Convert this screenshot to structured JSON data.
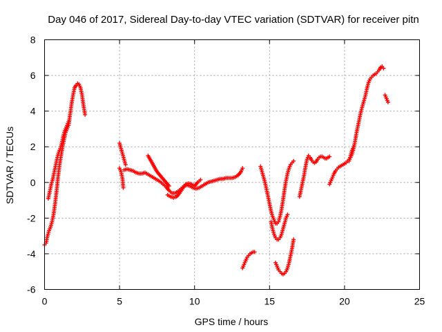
{
  "chart_data": {
    "type": "scatter",
    "title": "Day 046 of 2017, Sidereal Day-to-day VTEC variation (SDTVAR) for receiver pitn",
    "xlabel": "GPS time / hours",
    "ylabel": "SDTVAR / TECUs",
    "xlim": [
      0,
      25
    ],
    "ylim": [
      -6,
      8
    ],
    "xticks": [
      0,
      5,
      10,
      15,
      20,
      25
    ],
    "yticks": [
      -6,
      -4,
      -2,
      0,
      2,
      4,
      6,
      8
    ],
    "grid": true,
    "marker": "plus",
    "color": "#ff0000",
    "segments": [
      [
        [
          0.0,
          -3.5
        ],
        [
          0.1,
          -3.4
        ],
        [
          0.2,
          -3.0
        ],
        [
          0.3,
          -2.7
        ],
        [
          0.4,
          -2.5
        ],
        [
          0.5,
          -2.2
        ],
        [
          0.6,
          -1.8
        ],
        [
          0.7,
          -1.2
        ],
        [
          0.8,
          -0.5
        ],
        [
          0.9,
          0.3
        ],
        [
          1.0,
          1.0
        ],
        [
          1.1,
          1.5
        ],
        [
          1.2,
          2.0
        ],
        [
          1.3,
          2.4
        ],
        [
          1.4,
          2.8
        ],
        [
          1.5,
          3.0
        ],
        [
          1.6,
          3.2
        ],
        [
          1.7,
          3.8
        ],
        [
          1.8,
          4.4
        ],
        [
          1.9,
          4.9
        ],
        [
          2.0,
          5.3
        ],
        [
          2.1,
          5.45
        ],
        [
          2.2,
          5.55
        ],
        [
          2.3,
          5.5
        ],
        [
          2.4,
          5.3
        ],
        [
          2.5,
          4.9
        ],
        [
          2.6,
          4.3
        ],
        [
          2.7,
          3.8
        ]
      ],
      [
        [
          0.25,
          -0.9
        ],
        [
          0.35,
          -0.5
        ],
        [
          0.45,
          -0.1
        ],
        [
          0.55,
          0.2
        ],
        [
          0.65,
          0.6
        ],
        [
          0.75,
          1.0
        ],
        [
          0.85,
          1.4
        ],
        [
          0.95,
          1.7
        ],
        [
          1.05,
          1.9
        ],
        [
          1.15,
          2.2
        ],
        [
          1.25,
          2.6
        ],
        [
          1.35,
          2.9
        ],
        [
          1.45,
          3.1
        ],
        [
          1.55,
          3.3
        ],
        [
          1.65,
          3.5
        ]
      ],
      [
        [
          5.0,
          2.2
        ],
        [
          5.1,
          1.9
        ],
        [
          5.2,
          1.6
        ],
        [
          5.3,
          1.3
        ],
        [
          5.4,
          1.0
        ]
      ],
      [
        [
          5.0,
          0.8
        ],
        [
          5.1,
          0.6
        ],
        [
          5.2,
          0.2
        ],
        [
          5.25,
          -0.3
        ]
      ],
      [
        [
          5.3,
          0.7
        ],
        [
          5.5,
          0.75
        ],
        [
          5.7,
          0.7
        ],
        [
          5.9,
          0.65
        ],
        [
          6.1,
          0.55
        ],
        [
          6.3,
          0.5
        ],
        [
          6.5,
          0.5
        ],
        [
          6.7,
          0.55
        ],
        [
          6.9,
          0.45
        ],
        [
          7.1,
          0.35
        ],
        [
          7.3,
          0.25
        ],
        [
          7.5,
          0.15
        ],
        [
          7.7,
          0.05
        ],
        [
          7.9,
          -0.1
        ],
        [
          8.1,
          -0.25
        ],
        [
          8.3,
          -0.45
        ],
        [
          8.5,
          -0.6
        ],
        [
          8.7,
          -0.6
        ],
        [
          8.9,
          -0.5
        ],
        [
          9.1,
          -0.35
        ],
        [
          9.3,
          -0.2
        ],
        [
          9.5,
          -0.15
        ],
        [
          9.7,
          -0.2
        ],
        [
          9.9,
          -0.3
        ],
        [
          10.1,
          -0.35
        ],
        [
          10.3,
          -0.3
        ],
        [
          10.5,
          -0.2
        ],
        [
          10.7,
          -0.1
        ],
        [
          10.9,
          0.0
        ],
        [
          11.1,
          0.05
        ],
        [
          11.3,
          0.1
        ],
        [
          11.5,
          0.15
        ],
        [
          11.7,
          0.2
        ],
        [
          11.9,
          0.2
        ],
        [
          12.1,
          0.25
        ],
        [
          12.3,
          0.25
        ],
        [
          12.5,
          0.25
        ],
        [
          12.7,
          0.3
        ],
        [
          12.9,
          0.4
        ],
        [
          13.1,
          0.6
        ],
        [
          13.2,
          0.8
        ]
      ],
      [
        [
          6.9,
          1.5
        ],
        [
          7.1,
          1.2
        ],
        [
          7.3,
          0.9
        ],
        [
          7.5,
          0.6
        ],
        [
          7.7,
          0.4
        ],
        [
          7.9,
          0.2
        ],
        [
          8.1,
          0.0
        ],
        [
          8.3,
          -0.2
        ]
      ],
      [
        [
          8.2,
          -0.7
        ],
        [
          8.4,
          -0.8
        ],
        [
          8.6,
          -0.85
        ],
        [
          8.8,
          -0.8
        ],
        [
          9.0,
          -0.6
        ],
        [
          9.2,
          -0.35
        ],
        [
          9.4,
          -0.1
        ],
        [
          9.6,
          -0.05
        ],
        [
          9.8,
          -0.1
        ],
        [
          10.0,
          -0.2
        ],
        [
          10.2,
          0.0
        ],
        [
          10.4,
          0.15
        ]
      ],
      [
        [
          13.2,
          -4.8
        ],
        [
          13.3,
          -4.6
        ],
        [
          13.4,
          -4.4
        ],
        [
          13.5,
          -4.2
        ],
        [
          13.6,
          -4.1
        ],
        [
          13.7,
          -4.0
        ],
        [
          13.8,
          -3.95
        ],
        [
          13.9,
          -3.9
        ],
        [
          14.0,
          -3.9
        ]
      ],
      [
        [
          14.4,
          0.9
        ],
        [
          14.5,
          0.6
        ],
        [
          14.6,
          0.3
        ],
        [
          14.7,
          0.0
        ],
        [
          14.8,
          -0.4
        ],
        [
          14.9,
          -0.8
        ],
        [
          15.0,
          -1.2
        ],
        [
          15.1,
          -1.6
        ],
        [
          15.2,
          -1.9
        ],
        [
          15.3,
          -2.1
        ],
        [
          15.4,
          -2.3
        ],
        [
          15.5,
          -2.3
        ],
        [
          15.6,
          -2.2
        ],
        [
          15.7,
          -1.9
        ],
        [
          15.8,
          -1.5
        ],
        [
          15.9,
          -1.0
        ],
        [
          16.0,
          -0.4
        ],
        [
          16.1,
          0.1
        ],
        [
          16.2,
          0.5
        ],
        [
          16.3,
          0.8
        ],
        [
          16.4,
          1.0
        ],
        [
          16.5,
          1.1
        ],
        [
          16.6,
          1.2
        ]
      ],
      [
        [
          15.1,
          -2.2
        ],
        [
          15.2,
          -2.6
        ],
        [
          15.3,
          -2.9
        ],
        [
          15.4,
          -3.1
        ],
        [
          15.5,
          -3.2
        ],
        [
          15.6,
          -3.2
        ],
        [
          15.7,
          -3.1
        ],
        [
          15.8,
          -2.9
        ],
        [
          15.9,
          -2.6
        ],
        [
          16.0,
          -2.3
        ],
        [
          16.1,
          -2.0
        ],
        [
          16.2,
          -1.8
        ]
      ],
      [
        [
          15.4,
          -4.5
        ],
        [
          15.5,
          -4.7
        ],
        [
          15.6,
          -4.9
        ],
        [
          15.7,
          -5.0
        ],
        [
          15.8,
          -5.1
        ],
        [
          15.9,
          -5.15
        ],
        [
          16.0,
          -5.1
        ],
        [
          16.1,
          -5.0
        ],
        [
          16.2,
          -4.8
        ],
        [
          16.3,
          -4.5
        ],
        [
          16.4,
          -4.1
        ],
        [
          16.5,
          -3.7
        ],
        [
          16.6,
          -3.2
        ]
      ],
      [
        [
          17.0,
          -0.8
        ],
        [
          17.1,
          -0.4
        ],
        [
          17.2,
          0.0
        ],
        [
          17.3,
          0.4
        ],
        [
          17.4,
          0.9
        ],
        [
          17.5,
          1.3
        ],
        [
          17.6,
          1.5
        ],
        [
          17.7,
          1.4
        ],
        [
          17.8,
          1.25
        ],
        [
          17.9,
          1.15
        ],
        [
          18.0,
          1.1
        ],
        [
          18.1,
          1.15
        ],
        [
          18.2,
          1.3
        ],
        [
          18.3,
          1.4
        ],
        [
          18.4,
          1.45
        ],
        [
          18.5,
          1.45
        ],
        [
          18.6,
          1.4
        ],
        [
          18.7,
          1.35
        ],
        [
          18.8,
          1.35
        ],
        [
          18.9,
          1.4
        ],
        [
          19.0,
          1.45
        ]
      ],
      [
        [
          19.0,
          -0.1
        ],
        [
          19.1,
          0.1
        ],
        [
          19.2,
          0.3
        ],
        [
          19.3,
          0.5
        ],
        [
          19.4,
          0.65
        ],
        [
          19.5,
          0.75
        ],
        [
          19.6,
          0.85
        ],
        [
          19.7,
          0.9
        ],
        [
          19.8,
          0.95
        ],
        [
          19.9,
          1.0
        ],
        [
          20.0,
          1.05
        ],
        [
          20.1,
          1.1
        ],
        [
          20.2,
          1.2
        ],
        [
          20.3,
          1.3
        ],
        [
          20.4,
          1.4
        ],
        [
          20.5,
          1.6
        ],
        [
          20.6,
          1.9
        ],
        [
          20.7,
          2.3
        ],
        [
          20.8,
          2.8
        ],
        [
          20.9,
          3.2
        ],
        [
          21.0,
          3.6
        ],
        [
          21.1,
          4.0
        ],
        [
          21.2,
          4.3
        ],
        [
          21.3,
          4.6
        ],
        [
          21.4,
          4.9
        ],
        [
          21.5,
          5.3
        ],
        [
          21.6,
          5.6
        ],
        [
          21.7,
          5.8
        ],
        [
          21.8,
          5.9
        ],
        [
          21.9,
          6.0
        ],
        [
          22.0,
          6.05
        ],
        [
          22.1,
          6.1
        ],
        [
          22.2,
          6.2
        ],
        [
          22.3,
          6.3
        ],
        [
          22.4,
          6.45
        ],
        [
          22.5,
          6.5
        ],
        [
          22.6,
          6.4
        ]
      ],
      [
        [
          20.3,
          1.2
        ],
        [
          20.4,
          1.5
        ],
        [
          20.5,
          1.8
        ],
        [
          20.6,
          2.0
        ]
      ],
      [
        [
          22.7,
          4.9
        ],
        [
          22.8,
          4.7
        ],
        [
          22.9,
          4.5
        ]
      ]
    ]
  }
}
